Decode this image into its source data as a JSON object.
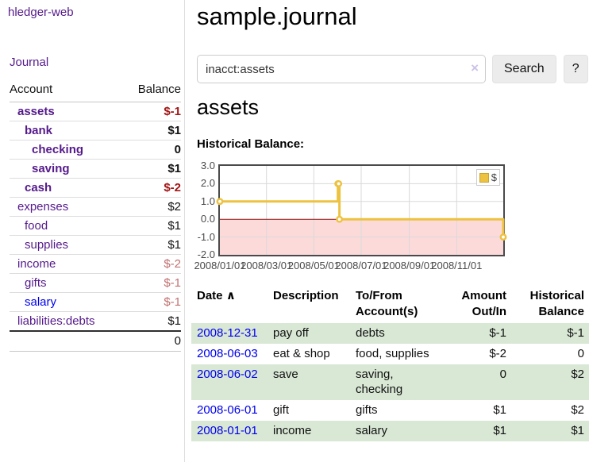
{
  "sidebar": {
    "brand": "hledger-web",
    "journal_link": "Journal",
    "accounts": {
      "header_account": "Account",
      "header_balance": "Balance",
      "rows": [
        {
          "name": "assets",
          "balance": "$-1",
          "depth": 1,
          "bold": true,
          "visited": true
        },
        {
          "name": "bank",
          "balance": "$1",
          "depth": 2,
          "bold": true,
          "visited": true
        },
        {
          "name": "checking",
          "balance": "0",
          "depth": 3,
          "bold": true,
          "visited": true
        },
        {
          "name": "saving",
          "balance": "$1",
          "depth": 3,
          "bold": true,
          "visited": true
        },
        {
          "name": "cash",
          "balance": "$-2",
          "depth": 2,
          "bold": true,
          "visited": true
        },
        {
          "name": "expenses",
          "balance": "$2",
          "depth": 1,
          "bold": false,
          "visited": true
        },
        {
          "name": "food",
          "balance": "$1",
          "depth": 2,
          "bold": false,
          "visited": true
        },
        {
          "name": "supplies",
          "balance": "$1",
          "depth": 2,
          "bold": false,
          "visited": true
        },
        {
          "name": "income",
          "balance": "$-2",
          "depth": 1,
          "bold": false,
          "visited": true
        },
        {
          "name": "gifts",
          "balance": "$-1",
          "depth": 2,
          "bold": false,
          "visited": true
        },
        {
          "name": "salary",
          "balance": "$-1",
          "depth": 2,
          "bold": false,
          "visited": false
        },
        {
          "name": "liabilities:debts",
          "balance": "$1",
          "depth": 1,
          "bold": false,
          "visited": true
        }
      ],
      "total": "0"
    }
  },
  "main": {
    "title": "sample.journal",
    "search": {
      "value": "inacct:assets",
      "clear_icon": "×",
      "button": "Search",
      "help_button": "?"
    },
    "heading": "assets",
    "chart_title": "Historical Balance:"
  },
  "chart_data": {
    "type": "line",
    "step": true,
    "title": "Historical Balance:",
    "series": [
      {
        "name": "$",
        "color": "#edc240",
        "points": [
          [
            "2008-01-01",
            1
          ],
          [
            "2008-06-01",
            2
          ],
          [
            "2008-06-02",
            2
          ],
          [
            "2008-06-03",
            0
          ],
          [
            "2008-12-31",
            -1
          ]
        ]
      }
    ],
    "x_ticks": [
      "2008/01/01",
      "2008/03/01",
      "2008/05/01",
      "2008/07/01",
      "2008/09/01",
      "2008/11/01"
    ],
    "y_ticks": [
      "3.0",
      "2.0",
      "1.0",
      "0.0",
      "-1.0",
      "-2.0"
    ],
    "xlim": [
      "2008-01-01",
      "2008-12-31"
    ],
    "ylim": [
      -2,
      3
    ],
    "grid": true,
    "legend": {
      "label": "$",
      "position": "top-right"
    },
    "negative_fill": "#fcdada",
    "zero_line_color": "#8b1212",
    "grid_color": "#d9d9d9"
  },
  "register": {
    "sort_icon": "∧",
    "headers": [
      "Date",
      "Description",
      "To/From Account(s)",
      "Amount Out/In",
      "Historical Balance"
    ],
    "rows": [
      {
        "date": "2008-12-31",
        "description": "pay off",
        "accounts": "debts",
        "amount": "$-1",
        "balance": "$-1"
      },
      {
        "date": "2008-06-03",
        "description": "eat & shop",
        "accounts": "food, supplies",
        "amount": "$-2",
        "balance": "0"
      },
      {
        "date": "2008-06-02",
        "description": "save",
        "accounts": "saving, checking",
        "amount": "0",
        "balance": "$2"
      },
      {
        "date": "2008-06-01",
        "description": "gift",
        "accounts": "gifts",
        "amount": "$1",
        "balance": "$2"
      },
      {
        "date": "2008-01-01",
        "description": "income",
        "accounts": "salary",
        "amount": "$1",
        "balance": "$1"
      }
    ]
  }
}
